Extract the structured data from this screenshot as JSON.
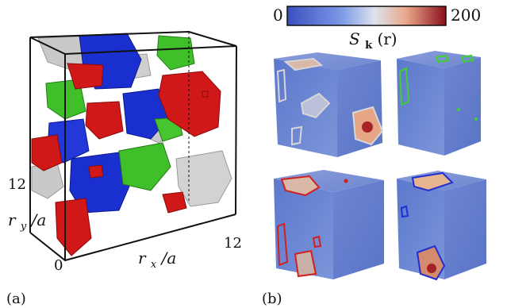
{
  "panel_a": {
    "panel_label": "(a)",
    "axis_tick_y": "12",
    "axis_tick_origin": "0",
    "axis_tick_x": "12",
    "ylabel_main": "r",
    "ylabel_sub": "y",
    "ylabel_rest": "/a",
    "xlabel_main": "r",
    "xlabel_sub": "x",
    "xlabel_rest": "/a",
    "cluster_colors": [
      "#d01818",
      "#1a2fd0",
      "#3fbf2a",
      "#c9c9c9"
    ]
  },
  "panel_b": {
    "panel_label": "(b)",
    "colorbar_min": "0",
    "colorbar_max": "200",
    "colorbar_title_main": "S",
    "colorbar_title_sub": "k",
    "colorbar_title_rest": "(r)",
    "colorbar_colors": [
      "#3a4fc0",
      "#7d9be6",
      "#dde3ee",
      "#e8a88a",
      "#8b0f1c"
    ],
    "contour_colors": [
      "#d7d7d7",
      "#40d030",
      "#d02020",
      "#2030d0"
    ]
  }
}
